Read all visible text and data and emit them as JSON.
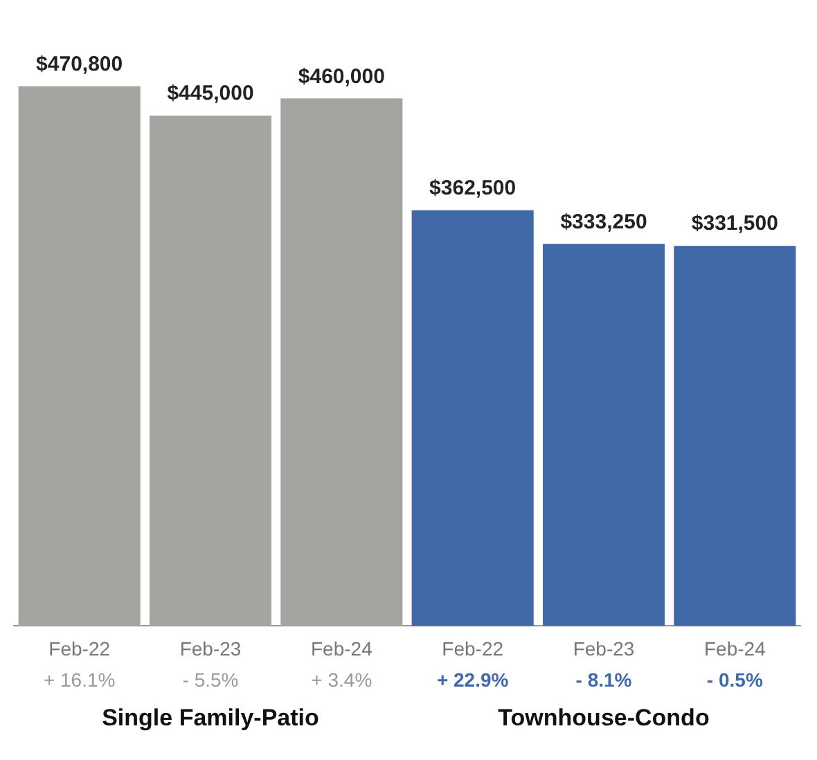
{
  "chart_data": {
    "type": "bar",
    "categories": [
      "Feb-22",
      "Feb-23",
      "Feb-24",
      "Feb-22",
      "Feb-23",
      "Feb-24"
    ],
    "legend": false,
    "grid": false,
    "series": [
      {
        "color": "#a4a4a0",
        "values": [
          470800,
          445000,
          460000,
          null,
          null,
          null
        ],
        "value_labels": [
          "$470,800",
          "$445,000",
          "$460,000",
          null,
          null,
          null
        ]
      },
      {
        "color": "#4169a8",
        "values": [
          null,
          null,
          null,
          362500,
          333250,
          331500
        ],
        "value_labels": [
          null,
          null,
          null,
          "$362,500",
          "$333,250",
          "$331,500"
        ]
      }
    ],
    "annotations": [
      "+ 16.1%",
      "- 5.5%",
      "+ 3.4%",
      "+ 22.9%",
      "- 8.1%",
      "- 0.5%",
      "Single Family-Patio",
      "Townhouse-Condo"
    ]
  }
}
